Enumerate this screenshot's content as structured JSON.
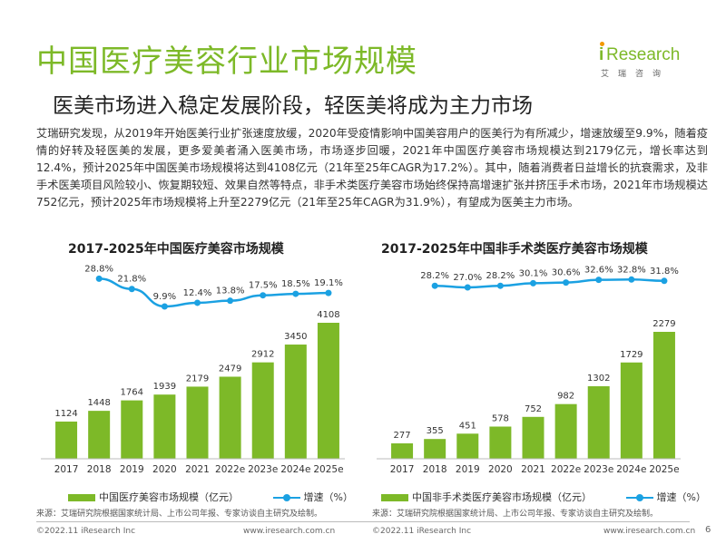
{
  "page": {
    "title": "中国医疗美容行业市场规模",
    "subtitle": "医美市场进入稳定发展阶段，轻医美将成为主力市场",
    "body": "艾瑞研究发现，从2019年开始医美行业扩张速度放缓，2020年受疫情影响中国美容用户的医美行为有所减少，增速放缓至9.9%，随着疫情的好转及轻医美的发展，更多爱美者涌入医美市场，市场逐步回暖，2021年中国医疗美容市场规模达到2179亿元，增长率达到12.4%，预计2025年中国医美市场规模将达到4108亿元（21年至25年CAGR为17.2%）。其中，随着消费者日益增长的抗衰需求，及非手术医美项目风险较小、恢复期较短、效果自然等特点，非手术类医疗美容市场始终保持高增速扩张并挤压手术市场，2021年市场规模达752亿元，预计2025年市场规模将上升至2279亿元（21年至25年CAGR为31.9%），有望成为医美主力市场。",
    "page_number": "6"
  },
  "logo": {
    "brand_i": "i",
    "brand_rest": "Research",
    "brand_cn": "艾瑞咨询"
  },
  "footer": {
    "left_copyright": "©2022.11 iResearch Inc",
    "left_url": "www.iresearch.com.cn",
    "right_copyright": "©2022.11 iResearch Inc",
    "right_url": "www.iresearch.com.cn"
  },
  "colors": {
    "accent": "#7DB928",
    "bar": "#7DB928",
    "line": "#1BA1E2",
    "text": "#333333"
  },
  "chart_data": [
    {
      "type": "bar",
      "title": "2017-2025年中国医疗美容市场规模",
      "categories": [
        "2017",
        "2018",
        "2019",
        "2020",
        "2021",
        "2022e",
        "2023e",
        "2024e",
        "2025e"
      ],
      "series": [
        {
          "name": "中国医疗美容市场规模（亿元）",
          "type": "bar",
          "values": [
            1124,
            1448,
            1764,
            1939,
            2179,
            2479,
            2912,
            3450,
            4108
          ]
        },
        {
          "name": "增速（%）",
          "type": "line",
          "values": [
            null,
            28.8,
            21.8,
            9.9,
            12.4,
            13.8,
            17.5,
            18.5,
            19.1
          ],
          "labels": [
            "",
            "28.8%",
            "21.8%",
            "9.9%",
            "12.4%",
            "13.8%",
            "17.5%",
            "18.5%",
            "19.1%"
          ]
        }
      ],
      "legend": [
        "中国医疗美容市场规模（亿元）",
        "增速（%）"
      ],
      "legend_position": "bottom",
      "source": "来源：艾瑞研究院根据国家统计局、上市公司年报、专家访谈自主研究及绘制。",
      "grid": false
    },
    {
      "type": "bar",
      "title": "2017-2025年中国非手术类医疗美容市场规模",
      "categories": [
        "2017",
        "2018",
        "2019",
        "2020",
        "2021",
        "2022e",
        "2023e",
        "2024e",
        "2025e"
      ],
      "series": [
        {
          "name": "中国非手术类医疗美容市场规模（亿元）",
          "type": "bar",
          "values": [
            277,
            355,
            451,
            578,
            752,
            982,
            1302,
            1729,
            2279
          ]
        },
        {
          "name": "增速（%）",
          "type": "line",
          "values": [
            null,
            28.2,
            27.0,
            28.2,
            30.1,
            30.6,
            32.6,
            32.8,
            31.8
          ],
          "labels": [
            "",
            "28.2%",
            "27.0%",
            "28.2%",
            "30.1%",
            "30.6%",
            "32.6%",
            "32.8%",
            "31.8%"
          ]
        }
      ],
      "legend": [
        "中国非手术类医疗美容市场规模（亿元）",
        "增速（%）"
      ],
      "legend_position": "bottom",
      "source": "来源：艾瑞研究院根据国家统计局、上市公司年报、专家访谈自主研究及绘制。",
      "grid": false
    }
  ]
}
